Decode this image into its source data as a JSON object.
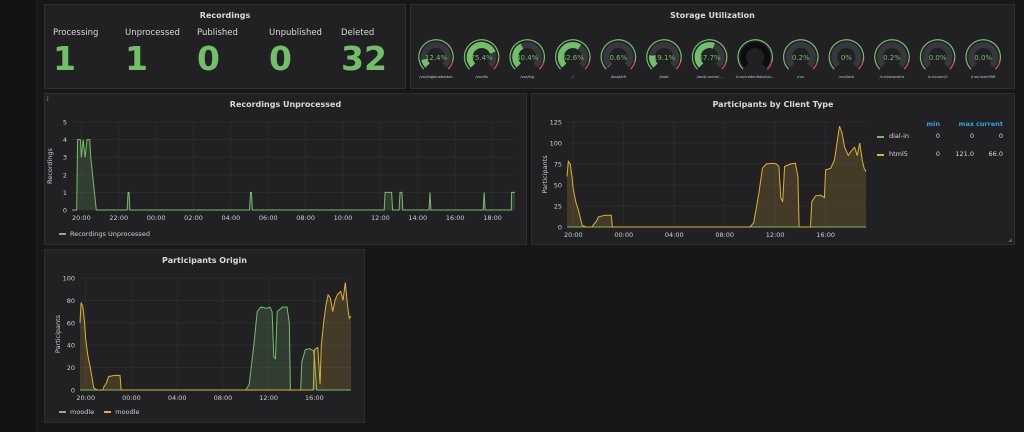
{
  "colors": {
    "green": "#73bf69",
    "orange": "#e0b135",
    "red": "#f2495c",
    "panel": "#212124",
    "grid": "#2c2d30"
  },
  "recordings": {
    "title": "Recordings",
    "stats": [
      {
        "label": "Processing",
        "value": "1"
      },
      {
        "label": "Unprocessed",
        "value": "1"
      },
      {
        "label": "Published",
        "value": "0"
      },
      {
        "label": "Unpublished",
        "value": "0"
      },
      {
        "label": "Deleted",
        "value": "32"
      }
    ]
  },
  "storage": {
    "title": "Storage Utilization",
    "gauges": [
      {
        "value_text": "12.4%",
        "value": 12.4,
        "label": "/var/bigbluebutton"
      },
      {
        "value_text": "75.4%",
        "value": 75.4,
        "label": "/var/lib"
      },
      {
        "value_text": "40.4%",
        "value": 40.4,
        "label": "/var/log"
      },
      {
        "value_text": "62.6%",
        "value": 62.6,
        "label": "/"
      },
      {
        "value_text": "0.6%",
        "value": 0.6,
        "label": "/boot/efi"
      },
      {
        "value_text": "19.1%",
        "value": 19.1,
        "label": "/boot"
      },
      {
        "value_text": "57.7%",
        "value": 57.7,
        "label": "/root/.cache/..."
      },
      {
        "value_text": "",
        "value": 100,
        "label": "/run/credentials/sys..."
      },
      {
        "value_text": "0.2%",
        "value": 0.2,
        "label": "/run"
      },
      {
        "value_text": "0%",
        "value": 0,
        "label": "/run/lock"
      },
      {
        "value_text": "0.2%",
        "value": 0.2,
        "label": "/run/snapd/ns"
      },
      {
        "value_text": "0.0%",
        "value": 0.0,
        "label": "/run/user/0"
      },
      {
        "value_text": "0.0%",
        "value": 0.0,
        "label": "/run/user/998"
      }
    ]
  },
  "unprocessed": {
    "title": "Recordings Unprocessed",
    "info": "i",
    "ylabel": "Recordings",
    "legend": "Recordings Unprocessed",
    "chart_data": {
      "type": "line",
      "ylim": [
        0,
        5
      ],
      "yticks": [
        "0",
        "1",
        "2",
        "3",
        "4",
        "5"
      ],
      "xticks": [
        "20:00",
        "22:00",
        "00:00",
        "02:00",
        "04:00",
        "06:00",
        "08:00",
        "10:00",
        "12:00",
        "14:00",
        "16:00",
        "18:00"
      ],
      "xlim": [
        19.5,
        43.2
      ],
      "series": [
        {
          "name": "Recordings Unprocessed",
          "points": [
            [
              19.5,
              0
            ],
            [
              19.75,
              0
            ],
            [
              19.8,
              4
            ],
            [
              19.95,
              4
            ],
            [
              20.0,
              3
            ],
            [
              20.1,
              4
            ],
            [
              20.2,
              3
            ],
            [
              20.3,
              4
            ],
            [
              20.45,
              4
            ],
            [
              20.5,
              3
            ],
            [
              20.6,
              2
            ],
            [
              20.7,
              1
            ],
            [
              20.8,
              0
            ],
            [
              20.9,
              0
            ],
            [
              21.0,
              0
            ],
            [
              22.45,
              0
            ],
            [
              22.5,
              1
            ],
            [
              22.55,
              1
            ],
            [
              22.6,
              0
            ],
            [
              29.0,
              0
            ],
            [
              29.05,
              1
            ],
            [
              29.1,
              1
            ],
            [
              29.15,
              0
            ],
            [
              36.2,
              0
            ],
            [
              36.25,
              1
            ],
            [
              36.6,
              1
            ],
            [
              36.65,
              0
            ],
            [
              37.0,
              0
            ],
            [
              37.05,
              1
            ],
            [
              37.15,
              1
            ],
            [
              37.2,
              0
            ],
            [
              38.6,
              0
            ],
            [
              38.65,
              1
            ],
            [
              38.7,
              0
            ],
            [
              41.5,
              0
            ],
            [
              41.55,
              1
            ],
            [
              41.6,
              0
            ],
            [
              43.0,
              0
            ],
            [
              43.02,
              1
            ],
            [
              43.2,
              1
            ]
          ]
        }
      ]
    }
  },
  "client": {
    "title": "Participants by Client Type",
    "ylabel": "Participants",
    "chart_data": {
      "type": "line",
      "ylim": [
        0,
        125
      ],
      "yticks": [
        "0",
        "25",
        "50",
        "75",
        "100",
        "125"
      ],
      "xticks": [
        "20:00",
        "00:00",
        "04:00",
        "08:00",
        "12:00",
        "16:00"
      ],
      "xlim": [
        19.5,
        43.2
      ],
      "series": [
        {
          "name": "dial-in",
          "points": [
            [
              19.5,
              0
            ],
            [
              43.2,
              0
            ]
          ]
        },
        {
          "name": "html5",
          "points": [
            [
              19.5,
              60
            ],
            [
              19.6,
              78
            ],
            [
              19.75,
              75
            ],
            [
              19.9,
              60
            ],
            [
              20.0,
              45
            ],
            [
              20.2,
              30
            ],
            [
              20.4,
              20
            ],
            [
              20.6,
              8
            ],
            [
              20.7,
              2
            ],
            [
              21.0,
              0
            ],
            [
              21.5,
              0
            ],
            [
              21.6,
              3
            ],
            [
              21.8,
              6
            ],
            [
              22.0,
              12
            ],
            [
              22.5,
              14
            ],
            [
              23.0,
              14
            ],
            [
              23.1,
              0
            ],
            [
              34.0,
              0
            ],
            [
              34.3,
              5
            ],
            [
              34.7,
              40
            ],
            [
              35.0,
              70
            ],
            [
              35.3,
              75
            ],
            [
              35.8,
              76
            ],
            [
              36.1,
              75
            ],
            [
              36.3,
              72
            ],
            [
              36.45,
              35
            ],
            [
              36.6,
              30
            ],
            [
              36.75,
              72
            ],
            [
              37.2,
              75
            ],
            [
              37.6,
              76
            ],
            [
              37.8,
              60
            ],
            [
              37.9,
              0
            ],
            [
              38.8,
              0
            ],
            [
              38.9,
              30
            ],
            [
              39.2,
              37
            ],
            [
              39.6,
              38
            ],
            [
              39.9,
              35
            ],
            [
              40.0,
              68
            ],
            [
              40.4,
              70
            ],
            [
              40.7,
              80
            ],
            [
              40.9,
              100
            ],
            [
              41.1,
              120
            ],
            [
              41.3,
              112
            ],
            [
              41.5,
              95
            ],
            [
              41.8,
              85
            ],
            [
              42.0,
              90
            ],
            [
              42.3,
              95
            ],
            [
              42.5,
              85
            ],
            [
              42.7,
              100
            ],
            [
              42.9,
              80
            ],
            [
              43.05,
              70
            ],
            [
              43.2,
              66
            ]
          ]
        }
      ]
    },
    "legend": {
      "headers": [
        "min",
        "max",
        "current"
      ],
      "rows": [
        {
          "name": "dial-in",
          "min": "0",
          "max": "0",
          "current": "0",
          "color": "#73bf69"
        },
        {
          "name": "html5",
          "min": "0",
          "max": "121.0",
          "current": "66.0",
          "color": "#e0b135"
        }
      ]
    }
  },
  "origin": {
    "title": "Participants Origin",
    "ylabel": "Participants",
    "legend": [
      "moodle",
      "moodle"
    ],
    "chart_data": {
      "type": "line",
      "ylim": [
        0,
        100
      ],
      "yticks": [
        "0",
        "20",
        "40",
        "60",
        "80",
        "100"
      ],
      "xticks": [
        "20:00",
        "00:00",
        "04:00",
        "08:00",
        "12:00",
        "16:00"
      ],
      "xlim": [
        19.5,
        43.2
      ],
      "series": [
        {
          "name": "moodle",
          "points": [
            [
              19.5,
              0
            ],
            [
              34.0,
              0
            ],
            [
              34.3,
              5
            ],
            [
              34.7,
              40
            ],
            [
              35.0,
              70
            ],
            [
              35.3,
              74
            ],
            [
              35.8,
              73
            ],
            [
              36.1,
              74
            ],
            [
              36.3,
              70
            ],
            [
              36.45,
              30
            ],
            [
              36.6,
              28
            ],
            [
              36.75,
              70
            ],
            [
              37.2,
              74
            ],
            [
              37.6,
              74
            ],
            [
              37.8,
              60
            ],
            [
              37.9,
              0
            ],
            [
              38.8,
              0
            ],
            [
              38.9,
              25
            ],
            [
              39.2,
              36
            ],
            [
              39.6,
              37
            ],
            [
              39.9,
              35
            ],
            [
              40.0,
              30
            ],
            [
              40.2,
              0
            ],
            [
              43.2,
              0
            ]
          ]
        },
        {
          "name": "moodle",
          "points": [
            [
              19.5,
              60
            ],
            [
              19.6,
              78
            ],
            [
              19.75,
              74
            ],
            [
              19.9,
              60
            ],
            [
              20.0,
              45
            ],
            [
              20.2,
              30
            ],
            [
              20.4,
              20
            ],
            [
              20.6,
              8
            ],
            [
              20.7,
              2
            ],
            [
              21.0,
              0
            ],
            [
              21.5,
              0
            ],
            [
              21.6,
              3
            ],
            [
              21.8,
              6
            ],
            [
              22.0,
              12
            ],
            [
              22.5,
              13
            ],
            [
              23.0,
              13
            ],
            [
              23.1,
              0
            ],
            [
              39.9,
              0
            ],
            [
              40.0,
              36
            ],
            [
              40.3,
              38
            ],
            [
              40.5,
              5
            ],
            [
              40.6,
              40
            ],
            [
              40.8,
              60
            ],
            [
              41.0,
              75
            ],
            [
              41.2,
              85
            ],
            [
              41.4,
              82
            ],
            [
              41.6,
              70
            ],
            [
              41.8,
              80
            ],
            [
              42.0,
              85
            ],
            [
              42.3,
              88
            ],
            [
              42.5,
              80
            ],
            [
              42.7,
              96
            ],
            [
              42.9,
              75
            ],
            [
              43.05,
              64
            ],
            [
              43.2,
              66
            ]
          ]
        }
      ]
    }
  }
}
